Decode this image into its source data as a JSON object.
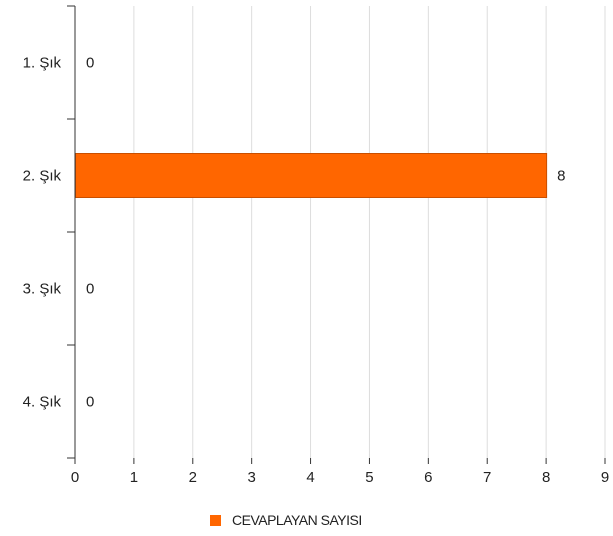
{
  "chart_data": {
    "type": "bar",
    "orientation": "horizontal",
    "categories": [
      "1. Şık",
      "2. Şık",
      "3. Şık",
      "4. Şık"
    ],
    "series": [
      {
        "name": "CEVAPLAYAN SAYISI",
        "values": [
          0,
          8,
          0,
          0
        ],
        "color": "#ff6600"
      }
    ],
    "xlim": [
      0,
      9
    ],
    "x_ticks": [
      0,
      1,
      2,
      3,
      4,
      5,
      6,
      7,
      8,
      9
    ],
    "grid": true,
    "data_labels": true,
    "legend_position": "bottom-center"
  }
}
